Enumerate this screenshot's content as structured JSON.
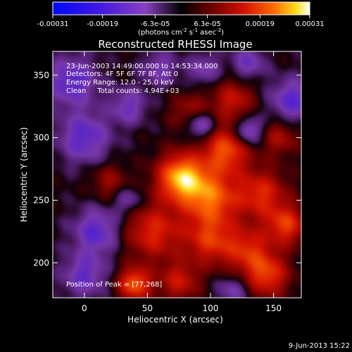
{
  "chart_data": {
    "type": "heatmap",
    "title": "Reconstructed RHESSI Image",
    "xlabel": "Heliocentric X (arcsec)",
    "ylabel": "Heliocentric Y (arcsec)",
    "xlim": [
      -25,
      172
    ],
    "ylim": [
      172,
      369
    ],
    "x_ticks": [
      0,
      50,
      100,
      150
    ],
    "y_ticks": [
      200,
      250,
      300,
      350
    ],
    "colorbar": {
      "ticks": [
        "-0.00031",
        "-0.00019",
        "-6.3e-05",
        "6.3e-05",
        "0.00019",
        "0.00031"
      ],
      "tick_values": [
        -0.00031,
        -0.00019,
        -6.3e-05,
        6.3e-05,
        0.00019,
        0.00031
      ],
      "label_main": "(photons cm",
      "label_exp1": "-2",
      "label_mid": " s",
      "label_exp2": "-1",
      "label_end": " asec",
      "label_exp3": "-2",
      "label_close": ")"
    },
    "annotations": [
      "23-Jun-2003 14:49:00.000 to 14:53:34.000",
      "Detectors: 4F 5F 6F 7F 8F, Att 0",
      "Energy Range: 12.0 - 25.0 keV",
      "Clean     Total counts: 4.94E+03"
    ],
    "peak_label": "Position of Peak = [77,268]",
    "peak": [
      77,
      268
    ],
    "sources": [
      {
        "x": 77,
        "y": 268,
        "sigma": 13,
        "amp": 1.0
      },
      {
        "x": 100,
        "y": 252,
        "sigma": 15,
        "amp": 0.75
      },
      {
        "x": 112,
        "y": 290,
        "sigma": 13,
        "amp": 0.7
      },
      {
        "x": 55,
        "y": 225,
        "sigma": 16,
        "amp": 0.55
      },
      {
        "x": 140,
        "y": 255,
        "sigma": 14,
        "amp": 0.55
      },
      {
        "x": 160,
        "y": 230,
        "sigma": 11,
        "amp": 0.6
      },
      {
        "x": 100,
        "y": 218,
        "sigma": 14,
        "amp": 0.55
      },
      {
        "x": 130,
        "y": 210,
        "sigma": 13,
        "amp": 0.5
      },
      {
        "x": 145,
        "y": 190,
        "sigma": 12,
        "amp": 0.6
      },
      {
        "x": 40,
        "y": 183,
        "sigma": 9,
        "amp": 0.75
      },
      {
        "x": 75,
        "y": 185,
        "sigma": 11,
        "amp": 0.45
      },
      {
        "x": 118,
        "y": 330,
        "sigma": 11,
        "amp": 0.45
      },
      {
        "x": 85,
        "y": 320,
        "sigma": 11,
        "amp": 0.35
      },
      {
        "x": 20,
        "y": 265,
        "sigma": 10,
        "amp": 0.3
      },
      {
        "x": 155,
        "y": 300,
        "sigma": 10,
        "amp": 0.35
      },
      {
        "x": 92,
        "y": 310,
        "sigma": 8,
        "amp": -0.55
      },
      {
        "x": 130,
        "y": 305,
        "sigma": 8,
        "amp": -0.5
      },
      {
        "x": 0,
        "y": 300,
        "sigma": 14,
        "amp": -0.45
      },
      {
        "x": 10,
        "y": 225,
        "sigma": 13,
        "amp": -0.45
      },
      {
        "x": -10,
        "y": 345,
        "sigma": 14,
        "amp": -0.45
      },
      {
        "x": 165,
        "y": 330,
        "sigma": 12,
        "amp": -0.45
      },
      {
        "x": 35,
        "y": 325,
        "sigma": 10,
        "amp": -0.35
      },
      {
        "x": 60,
        "y": 355,
        "sigma": 10,
        "amp": -0.3
      },
      {
        "x": 95,
        "y": 355,
        "sigma": 9,
        "amp": -0.3
      },
      {
        "x": 130,
        "y": 360,
        "sigma": 9,
        "amp": -0.35
      },
      {
        "x": 0,
        "y": 190,
        "sigma": 12,
        "amp": -0.4
      },
      {
        "x": 118,
        "y": 178,
        "sigma": 9,
        "amp": -0.3
      },
      {
        "x": 35,
        "y": 250,
        "sigma": 8,
        "amp": -0.3
      }
    ]
  },
  "footer_date": "9-Jun-2013 15:22"
}
